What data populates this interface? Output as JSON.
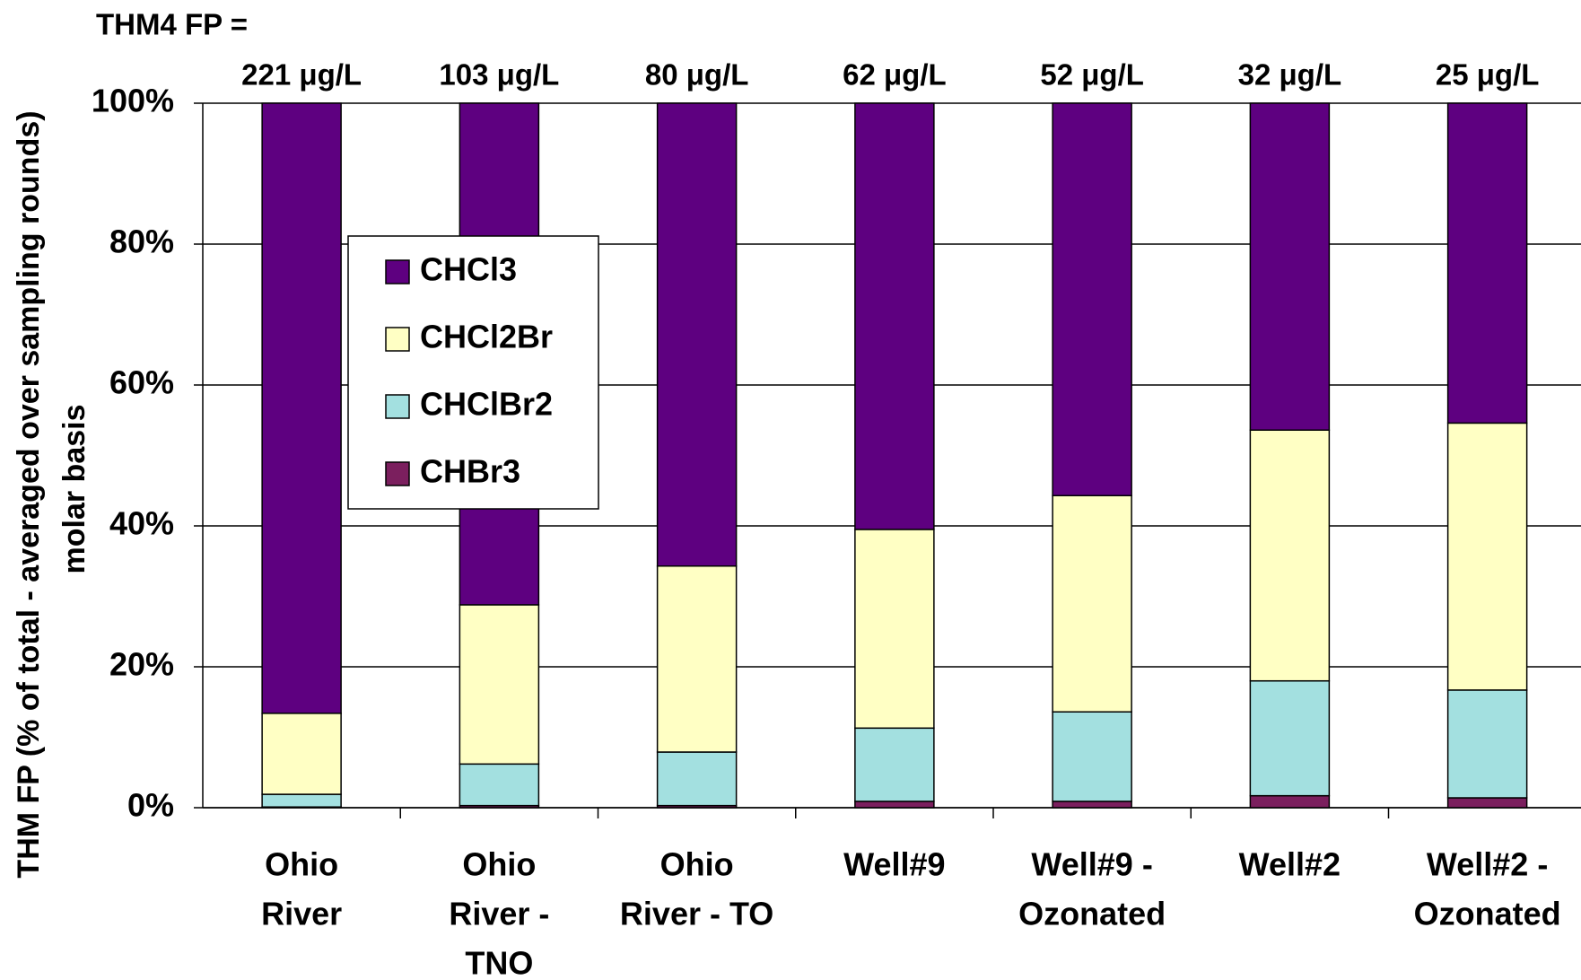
{
  "chart_data": {
    "type": "stacked_bar",
    "y_axis_label": [
      "THM FP (% of total - averaged over sampling rounds)",
      "molar basis"
    ],
    "annotation_title": "THM4 FP =",
    "annotations": [
      "221 μg/L",
      "103 μg/L",
      "80 μg/L",
      "62 μg/L",
      "52 μg/L",
      "32 μg/L",
      "25 μg/L"
    ],
    "categories": [
      [
        "Ohio",
        "River"
      ],
      [
        "Ohio",
        "River -",
        "TNO"
      ],
      [
        "Ohio",
        "River - TO"
      ],
      [
        "Well#9"
      ],
      [
        "Well#9 -",
        "Ozonated"
      ],
      [
        "Well#2"
      ],
      [
        "Well#2 -",
        "Ozonated"
      ]
    ],
    "series": [
      {
        "name": "CHBr3",
        "color": "#7b1f5e",
        "values": [
          0.1,
          0.3,
          0.3,
          0.9,
          0.9,
          1.7,
          1.4
        ]
      },
      {
        "name": "CHClBr2",
        "color": "#a3e0e0",
        "values": [
          1.8,
          5.9,
          7.6,
          10.4,
          12.7,
          16.3,
          15.3
        ]
      },
      {
        "name": "CHCl2Br",
        "color": "#ffffc4",
        "values": [
          11.5,
          22.6,
          26.4,
          28.2,
          30.7,
          35.6,
          37.9
        ]
      },
      {
        "name": "CHCl3",
        "color": "#5e0080",
        "values": [
          86.6,
          71.2,
          65.7,
          60.5,
          55.7,
          46.4,
          45.4
        ]
      }
    ],
    "legend_order": [
      3,
      2,
      1,
      0
    ],
    "ylim": [
      0,
      100
    ],
    "yticks": [
      {
        "value": 0,
        "label": "0%"
      },
      {
        "value": 20,
        "label": "20%"
      },
      {
        "value": 40,
        "label": "40%"
      },
      {
        "value": 60,
        "label": "60%"
      },
      {
        "value": 80,
        "label": "80%"
      },
      {
        "value": 100,
        "label": "100%"
      }
    ],
    "grid": true
  }
}
